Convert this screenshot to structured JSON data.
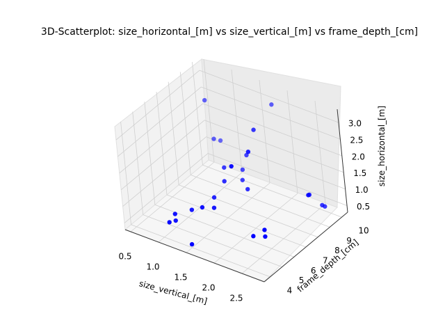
{
  "chart_data": {
    "type": "scatter",
    "title": "3D-Scatterplot: size_horizontal_[m] vs size_vertical_[m] vs frame_depth_[cm]",
    "xlabel": "size_vertical_[m]",
    "ylabel": "frame_depth_[cm]",
    "zlabel": "size_horizontal_[m]",
    "xlim": [
      0.4,
      2.9
    ],
    "ylim": [
      3.5,
      10.5
    ],
    "zlim": [
      0.3,
      3.4
    ],
    "xticks": [
      "0.5",
      "1.0",
      "1.5",
      "2.0",
      "2.5"
    ],
    "yticks": [
      "4",
      "5",
      "6",
      "7",
      "8",
      "9",
      "10"
    ],
    "zticks": [
      "0.5",
      "1.0",
      "1.5",
      "2.0",
      "2.5",
      "3.0"
    ],
    "grid": true,
    "marker_color": "#0000ff",
    "points": [
      {
        "x": 1.8,
        "y": 10.0,
        "z": 3.0
      },
      {
        "x": 0.8,
        "y": 9.0,
        "z": 2.8
      },
      {
        "x": 1.9,
        "y": 8.0,
        "z": 2.9
      },
      {
        "x": 2.0,
        "y": 7.0,
        "z": 2.6
      },
      {
        "x": 1.9,
        "y": 6.0,
        "z": 2.4
      },
      {
        "x": 1.6,
        "y": 8.5,
        "z": 1.8
      },
      {
        "x": 0.9,
        "y": 9.0,
        "z": 1.7
      },
      {
        "x": 1.4,
        "y": 7.5,
        "z": 1.6
      },
      {
        "x": 0.9,
        "y": 9.5,
        "z": 1.5
      },
      {
        "x": 1.5,
        "y": 7.0,
        "z": 1.4
      },
      {
        "x": 1.5,
        "y": 8.5,
        "z": 1.3
      },
      {
        "x": 1.6,
        "y": 8.0,
        "z": 1.2
      },
      {
        "x": 1.8,
        "y": 7.5,
        "z": 1.2
      },
      {
        "x": 1.4,
        "y": 6.5,
        "z": 1.0
      },
      {
        "x": 1.4,
        "y": 5.5,
        "z": 1.0
      },
      {
        "x": 1.5,
        "y": 6.0,
        "z": 0.9
      },
      {
        "x": 1.2,
        "y": 5.5,
        "z": 0.8
      },
      {
        "x": 1.0,
        "y": 5.0,
        "z": 0.7
      },
      {
        "x": 1.0,
        "y": 5.0,
        "z": 0.5
      },
      {
        "x": 1.0,
        "y": 4.5,
        "z": 0.6
      },
      {
        "x": 1.5,
        "y": 4.0,
        "z": 0.4
      },
      {
        "x": 2.4,
        "y": 6.0,
        "z": 0.8
      },
      {
        "x": 2.3,
        "y": 5.5,
        "z": 0.7
      },
      {
        "x": 2.4,
        "y": 6.0,
        "z": 0.6
      },
      {
        "x": 2.8,
        "y": 8.0,
        "z": 1.5
      },
      {
        "x": 2.7,
        "y": 8.5,
        "z": 1.3
      },
      {
        "x": 2.8,
        "y": 9.0,
        "z": 0.9
      },
      {
        "x": 2.8,
        "y": 9.2,
        "z": 0.8
      }
    ]
  }
}
